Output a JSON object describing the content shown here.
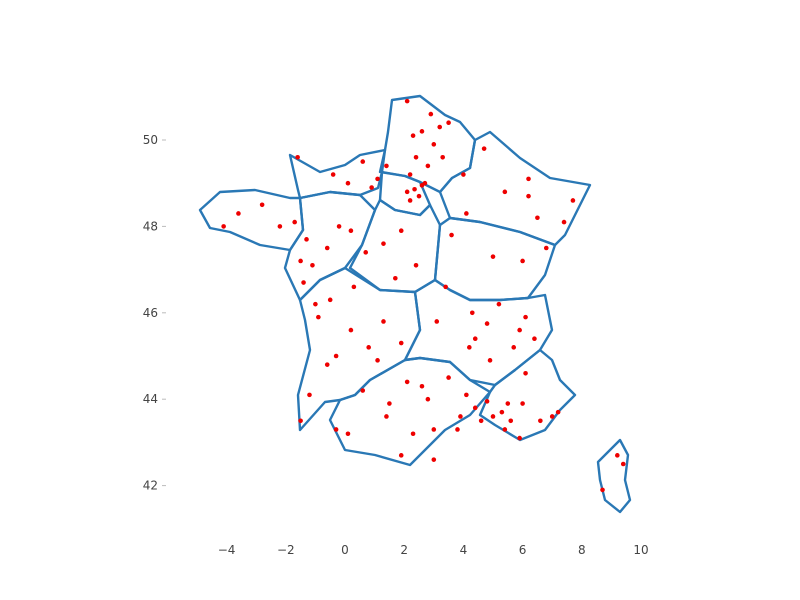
{
  "chart_data": {
    "type": "scatter",
    "title": "",
    "xlabel": "",
    "ylabel": "",
    "xlim": [
      -6,
      10.5
    ],
    "ylim": [
      41,
      51.5
    ],
    "x_ticks": [
      "−4",
      "−2",
      "0",
      "2",
      "4",
      "6",
      "8",
      "10"
    ],
    "x_tick_values": [
      -4,
      -2,
      0,
      2,
      4,
      6,
      8,
      10
    ],
    "y_ticks": [
      "42",
      "44",
      "46",
      "48",
      "50"
    ],
    "y_tick_values": [
      42,
      44,
      46,
      48,
      50
    ],
    "colors": {
      "boundary": "#2a78b5",
      "points": "#ee0000"
    },
    "regions_outline_style": "blue region boundaries of France",
    "points": [
      {
        "lon": 2.1,
        "lat": 50.9
      },
      {
        "lon": 2.9,
        "lat": 50.6
      },
      {
        "lon": 3.2,
        "lat": 50.3
      },
      {
        "lon": 2.6,
        "lat": 50.2
      },
      {
        "lon": 3.5,
        "lat": 50.4
      },
      {
        "lon": 2.3,
        "lat": 50.1
      },
      {
        "lon": 3.0,
        "lat": 49.9
      },
      {
        "lon": 2.4,
        "lat": 49.6
      },
      {
        "lon": 2.8,
        "lat": 49.4
      },
      {
        "lon": 3.3,
        "lat": 49.6
      },
      {
        "lon": 2.2,
        "lat": 49.2
      },
      {
        "lon": 2.7,
        "lat": 49.0
      },
      {
        "lon": 2.35,
        "lat": 48.86
      },
      {
        "lon": 2.5,
        "lat": 48.7
      },
      {
        "lon": 2.1,
        "lat": 48.8
      },
      {
        "lon": 2.6,
        "lat": 48.95
      },
      {
        "lon": 2.2,
        "lat": 48.6
      },
      {
        "lon": 1.4,
        "lat": 49.4
      },
      {
        "lon": 0.6,
        "lat": 49.5
      },
      {
        "lon": -0.4,
        "lat": 49.2
      },
      {
        "lon": -1.6,
        "lat": 49.6
      },
      {
        "lon": 0.1,
        "lat": 49.0
      },
      {
        "lon": 0.9,
        "lat": 48.9
      },
      {
        "lon": 1.1,
        "lat": 49.1
      },
      {
        "lon": -1.7,
        "lat": 48.1
      },
      {
        "lon": -2.8,
        "lat": 48.5
      },
      {
        "lon": -3.6,
        "lat": 48.3
      },
      {
        "lon": -4.1,
        "lat": 48.0
      },
      {
        "lon": -2.2,
        "lat": 48.0
      },
      {
        "lon": -1.5,
        "lat": 47.2
      },
      {
        "lon": -1.3,
        "lat": 47.7
      },
      {
        "lon": -0.6,
        "lat": 47.5
      },
      {
        "lon": -0.2,
        "lat": 48.0
      },
      {
        "lon": 0.2,
        "lat": 47.9
      },
      {
        "lon": -1.1,
        "lat": 47.1
      },
      {
        "lon": -1.4,
        "lat": 46.7
      },
      {
        "lon": 0.7,
        "lat": 47.4
      },
      {
        "lon": 1.3,
        "lat": 47.6
      },
      {
        "lon": 1.9,
        "lat": 47.9
      },
      {
        "lon": 2.4,
        "lat": 47.1
      },
      {
        "lon": 1.7,
        "lat": 46.8
      },
      {
        "lon": 0.3,
        "lat": 46.6
      },
      {
        "lon": -0.5,
        "lat": 46.3
      },
      {
        "lon": 0.2,
        "lat": 45.6
      },
      {
        "lon": 1.3,
        "lat": 45.8
      },
      {
        "lon": 1.9,
        "lat": 45.3
      },
      {
        "lon": -0.6,
        "lat": 44.8
      },
      {
        "lon": 0.6,
        "lat": 44.2
      },
      {
        "lon": 1.4,
        "lat": 43.6
      },
      {
        "lon": 2.3,
        "lat": 43.2
      },
      {
        "lon": 3.0,
        "lat": 43.3
      },
      {
        "lon": 3.9,
        "lat": 43.6
      },
      {
        "lon": 4.4,
        "lat": 43.8
      },
      {
        "lon": 4.8,
        "lat": 43.95
      },
      {
        "lon": 5.4,
        "lat": 43.3
      },
      {
        "lon": 5.9,
        "lat": 43.1
      },
      {
        "lon": 5.0,
        "lat": 43.6
      },
      {
        "lon": 5.3,
        "lat": 43.7
      },
      {
        "lon": 5.6,
        "lat": 43.5
      },
      {
        "lon": 6.0,
        "lat": 43.9
      },
      {
        "lon": 6.6,
        "lat": 43.5
      },
      {
        "lon": 7.2,
        "lat": 43.7
      },
      {
        "lon": 7.0,
        "lat": 43.6
      },
      {
        "lon": 6.1,
        "lat": 44.6
      },
      {
        "lon": 5.7,
        "lat": 45.2
      },
      {
        "lon": 4.8,
        "lat": 45.75
      },
      {
        "lon": 4.4,
        "lat": 45.4
      },
      {
        "lon": 5.9,
        "lat": 45.6
      },
      {
        "lon": 6.1,
        "lat": 45.9
      },
      {
        "lon": 5.2,
        "lat": 46.2
      },
      {
        "lon": 3.1,
        "lat": 45.8
      },
      {
        "lon": 3.4,
        "lat": 46.6
      },
      {
        "lon": 4.1,
        "lat": 44.1
      },
      {
        "lon": 4.9,
        "lat": 44.9
      },
      {
        "lon": 5.0,
        "lat": 47.3
      },
      {
        "lon": 6.0,
        "lat": 47.2
      },
      {
        "lon": 6.8,
        "lat": 47.5
      },
      {
        "lon": 7.4,
        "lat": 48.1
      },
      {
        "lon": 7.7,
        "lat": 48.6
      },
      {
        "lon": 6.2,
        "lat": 48.7
      },
      {
        "lon": 6.2,
        "lat": 49.1
      },
      {
        "lon": 4.0,
        "lat": 49.2
      },
      {
        "lon": 4.7,
        "lat": 49.8
      },
      {
        "lon": 5.4,
        "lat": 48.8
      },
      {
        "lon": 4.1,
        "lat": 48.3
      },
      {
        "lon": 3.6,
        "lat": 47.8
      },
      {
        "lon": 6.5,
        "lat": 48.2
      },
      {
        "lon": 9.2,
        "lat": 42.7
      },
      {
        "lon": 8.7,
        "lat": 41.9
      },
      {
        "lon": 9.4,
        "lat": 42.5
      },
      {
        "lon": -1.2,
        "lat": 44.1
      },
      {
        "lon": -0.3,
        "lat": 43.3
      },
      {
        "lon": -1.5,
        "lat": 43.5
      },
      {
        "lon": 0.1,
        "lat": 43.2
      },
      {
        "lon": 1.9,
        "lat": 42.7
      },
      {
        "lon": 3.0,
        "lat": 42.6
      },
      {
        "lon": 2.1,
        "lat": 44.4
      },
      {
        "lon": 2.6,
        "lat": 44.3
      },
      {
        "lon": 3.5,
        "lat": 44.5
      },
      {
        "lon": 0.8,
        "lat": 45.2
      },
      {
        "lon": -0.9,
        "lat": 45.9
      },
      {
        "lon": -1.0,
        "lat": 46.2
      },
      {
        "lon": 1.1,
        "lat": 44.9
      },
      {
        "lon": 4.3,
        "lat": 46.0
      },
      {
        "lon": 3.8,
        "lat": 43.3
      },
      {
        "lon": 1.5,
        "lat": 43.9
      },
      {
        "lon": 2.8,
        "lat": 44.0
      },
      {
        "lon": -0.3,
        "lat": 45.0
      },
      {
        "lon": 4.2,
        "lat": 45.2
      },
      {
        "lon": 5.5,
        "lat": 43.9
      },
      {
        "lon": 4.6,
        "lat": 43.5
      },
      {
        "lon": 6.4,
        "lat": 45.4
      }
    ]
  }
}
